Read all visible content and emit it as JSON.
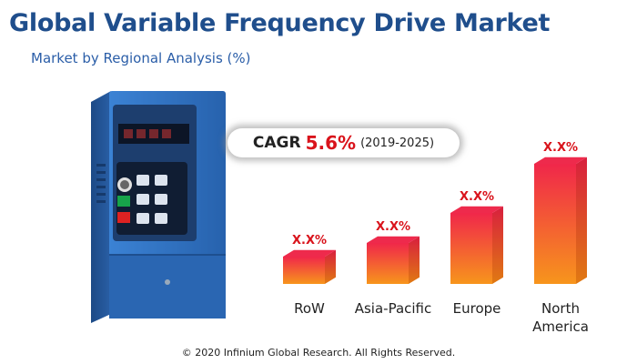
{
  "header": {
    "title": "Global Variable Frequency Drive Market",
    "subtitle": "Market by Regional Analysis (%)"
  },
  "cagr": {
    "label": "CAGR",
    "value": "5.6%",
    "period": "(2019-2025)"
  },
  "footer": {
    "copyright": "© 2020 Infinium Global Research. All Rights Reserved."
  },
  "colors": {
    "title": "#1f4e8c",
    "subtitle": "#2b5ea8",
    "accent_red": "#d9131b",
    "bar_top": "#f0274a",
    "bar_bottom": "#f7951c",
    "device_blue": "#2f73c7"
  },
  "chart_data": {
    "type": "bar",
    "categories": [
      "RoW",
      "Asia-Pacific",
      "Europe",
      "North America"
    ],
    "category_lines": [
      [
        "RoW"
      ],
      [
        "Asia-Pacific"
      ],
      [
        "Europe"
      ],
      [
        "North",
        "America"
      ]
    ],
    "data_labels": [
      "X.X%",
      "X.X%",
      "X.X%",
      "X.X%"
    ],
    "values": [
      1,
      1.5,
      2.6,
      4.4
    ],
    "note": "values are relative bar heights; exact percentages are masked as X.X% in the original"
  }
}
